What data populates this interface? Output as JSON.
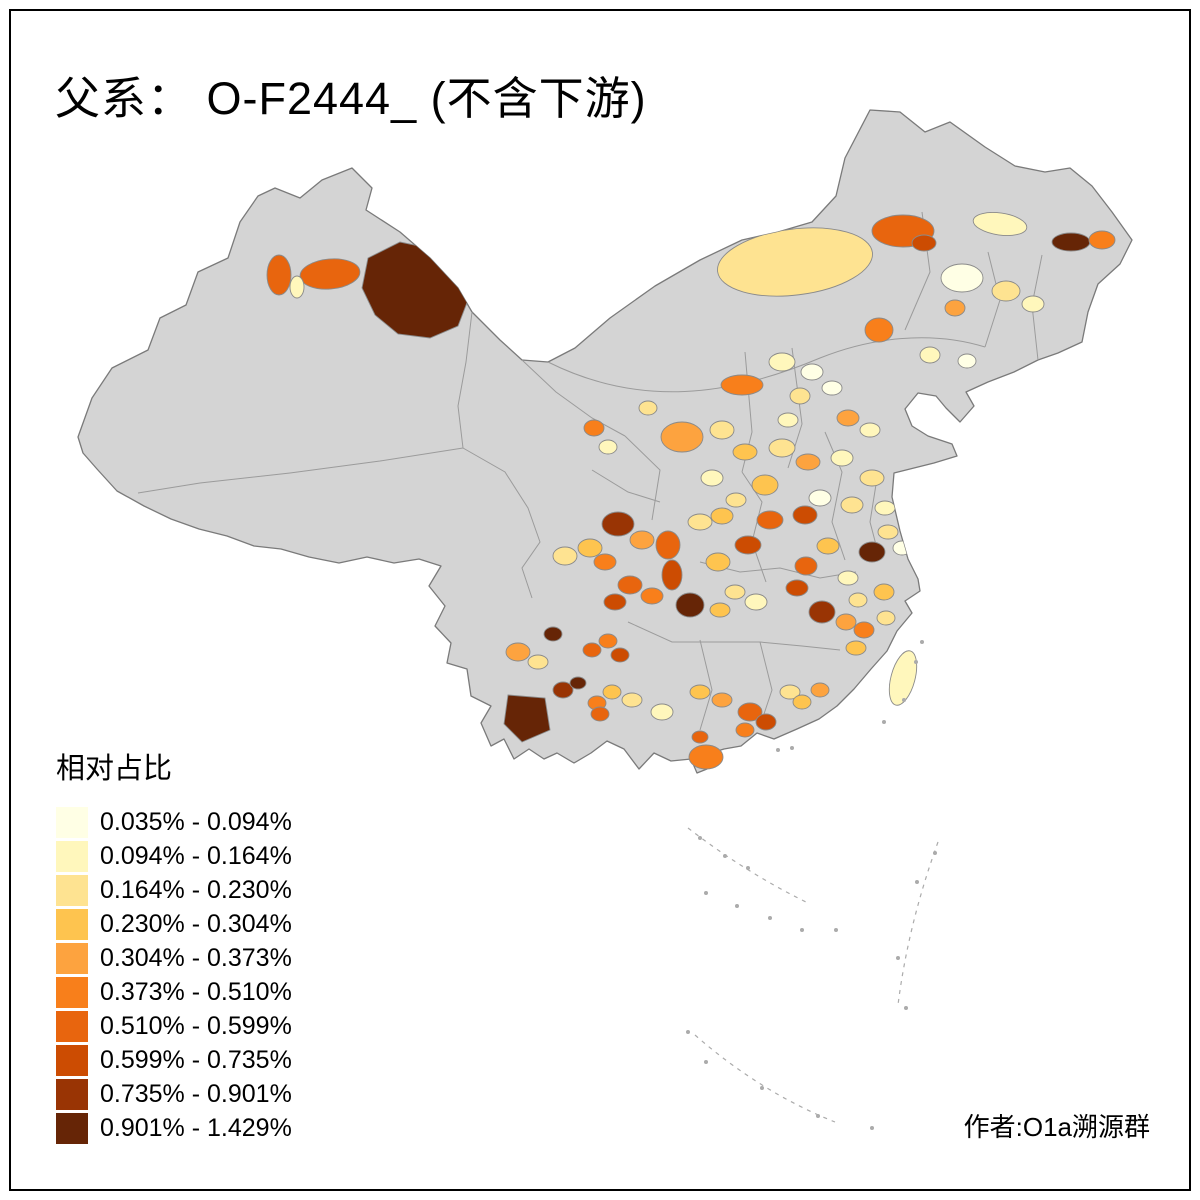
{
  "title": "父系： O-F2444_ (不含下游)",
  "attribution": "作者:O1a溯源群",
  "legend": {
    "title": "相对占比",
    "classes": [
      {
        "range": "0.035% - 0.094%",
        "color": "#FFFFE5"
      },
      {
        "range": "0.094% - 0.164%",
        "color": "#FFF7BC"
      },
      {
        "range": "0.164% - 0.230%",
        "color": "#FEE391"
      },
      {
        "range": "0.230% - 0.304%",
        "color": "#FEC44F"
      },
      {
        "range": "0.304% - 0.373%",
        "color": "#FDA33F"
      },
      {
        "range": "0.373% - 0.510%",
        "color": "#F87F1B"
      },
      {
        "range": "0.510% - 0.599%",
        "color": "#E8650E"
      },
      {
        "range": "0.599% - 0.735%",
        "color": "#CC4C02"
      },
      {
        "range": "0.735% - 0.901%",
        "color": "#993404"
      },
      {
        "range": "0.901% - 1.429%",
        "color": "#662506"
      }
    ]
  },
  "map": {
    "no_data_color": "#D4D4D4",
    "boundary_color": "#8C8C8C",
    "region_border_color": "#9B9B9B",
    "sea_color": "#FFFFFF",
    "frame_color": "#000000"
  }
}
